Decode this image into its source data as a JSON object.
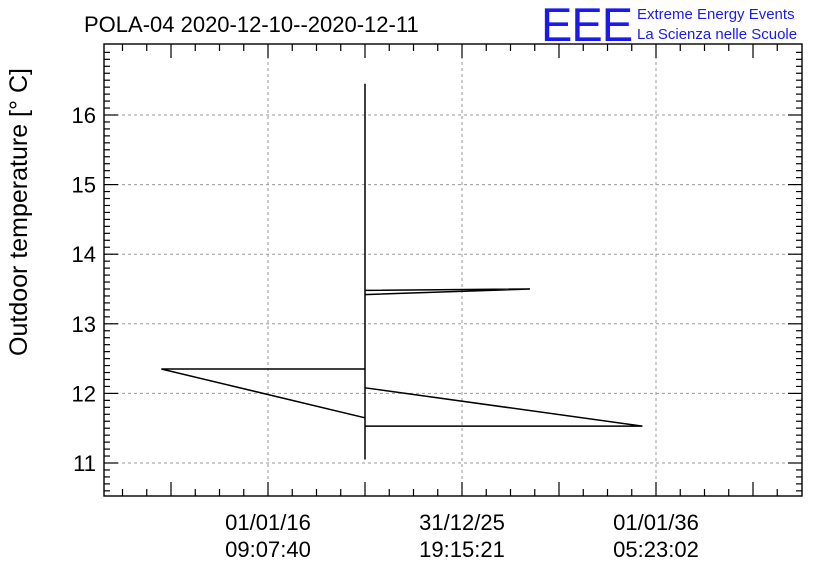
{
  "header": {
    "title": "POLA-04 2020-12-10--2020-12-11",
    "logo": "EEE",
    "logo_line1": "Extreme Energy Events",
    "logo_line2": "La Scienza nelle Scuole",
    "logo_color": "#1a1aee"
  },
  "chart_data": {
    "type": "line",
    "title": "POLA-04 2020-12-10--2020-12-11",
    "xlabel": "",
    "ylabel": "Outdoor temperature [° C]",
    "ylim": [
      10.5,
      17.0
    ],
    "yticks": [
      11,
      12,
      13,
      14,
      15,
      16
    ],
    "xticks": [
      {
        "date": "01/01/16",
        "time": "09:07:40"
      },
      {
        "date": "31/12/25",
        "time": "19:15:21"
      },
      {
        "date": "01/01/36",
        "time": "05:23:02"
      }
    ],
    "grid": true,
    "legend": "none",
    "series": [
      {
        "values": [
          [
            -0.55,
            12.35
          ],
          [
            0.5,
            12.35
          ],
          [
            0.5,
            11.05
          ],
          [
            0.5,
            16.45
          ],
          [
            0.5,
            11.65
          ],
          [
            -0.55,
            12.35
          ],
          [
            0.5,
            11.65
          ],
          [
            0.5,
            12.08
          ],
          [
            1.93,
            11.53
          ],
          [
            0.5,
            11.53
          ],
          [
            0.5,
            13.42
          ],
          [
            1.35,
            13.5
          ],
          [
            0.5,
            13.48
          ]
        ]
      }
    ]
  }
}
